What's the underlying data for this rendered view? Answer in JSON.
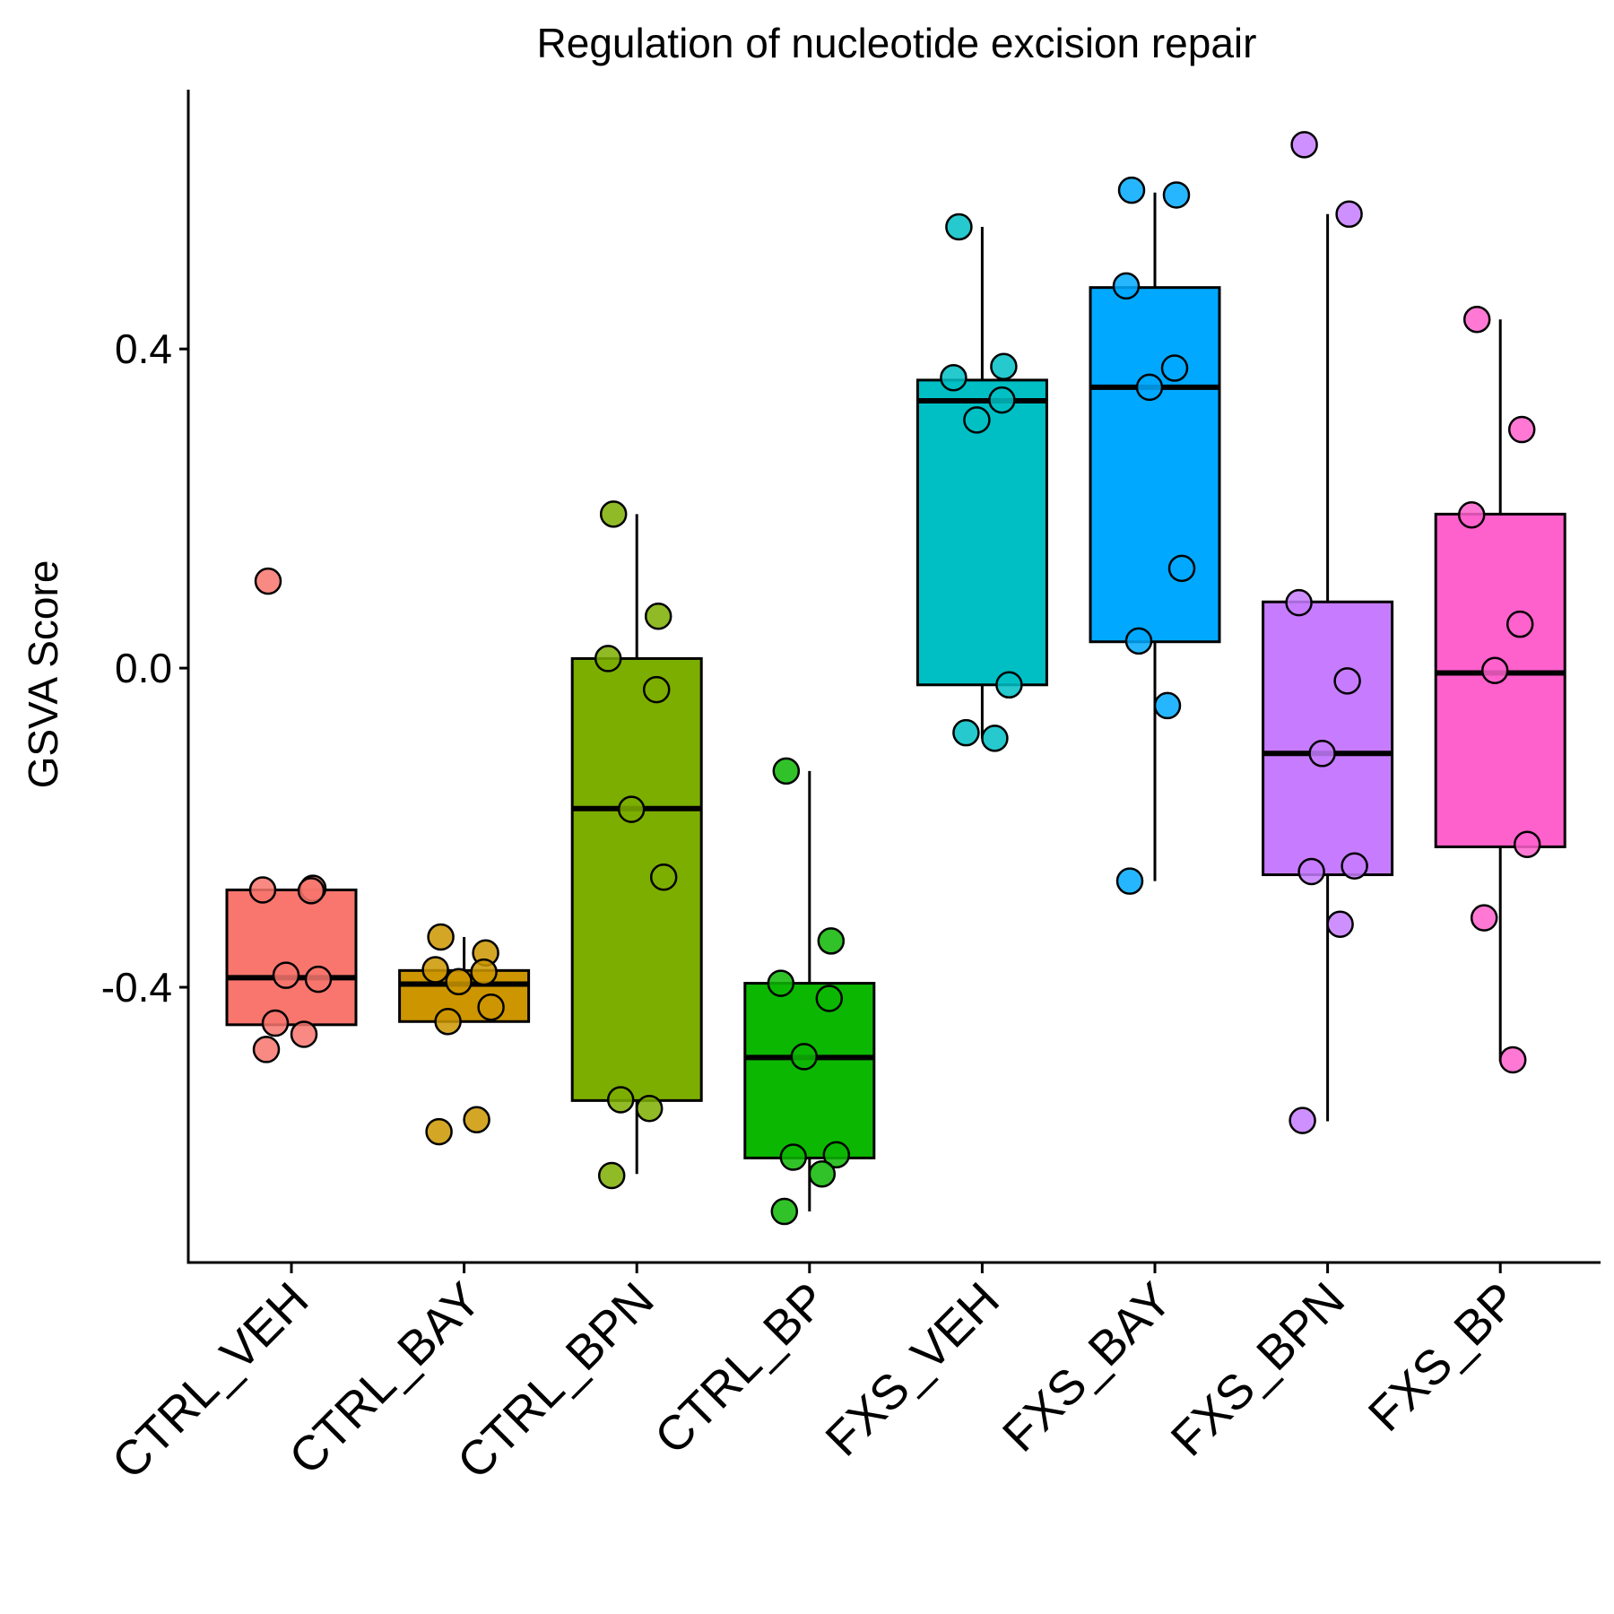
{
  "chart_data": {
    "type": "boxplot",
    "title": "Regulation of nucleotide excision repair",
    "xlabel": "",
    "ylabel": "GSVA Score",
    "ylim": [
      -0.745,
      0.725
    ],
    "yticks": [
      {
        "value": 0.4,
        "label": "0.4"
      },
      {
        "value": 0.0,
        "label": "0.0"
      },
      {
        "value": -0.4,
        "label": "-0.4"
      }
    ],
    "grid": false,
    "legend": "none",
    "groups": [
      {
        "name": "CTRL_VEH",
        "color": "#F8766D",
        "box": {
          "q1": -0.447,
          "median": -0.388,
          "q3": -0.278,
          "whisker_low": -0.447,
          "whisker_high": -0.278
        },
        "points": [
          0.109,
          -0.276,
          -0.278,
          -0.279,
          -0.385,
          -0.39,
          -0.445,
          -0.459,
          -0.478
        ]
      },
      {
        "name": "CTRL_BAY",
        "color": "#CD9600",
        "box": {
          "q1": -0.443,
          "median": -0.396,
          "q3": -0.379,
          "whisker_low": -0.443,
          "whisker_high": -0.337
        },
        "points": [
          -0.337,
          -0.357,
          -0.378,
          -0.381,
          -0.393,
          -0.425,
          -0.443,
          -0.566,
          -0.581
        ]
      },
      {
        "name": "CTRL_BPN",
        "color": "#7CAE00",
        "box": {
          "q1": -0.542,
          "median": -0.176,
          "q3": 0.012,
          "whisker_low": -0.634,
          "whisker_high": 0.193
        },
        "points": [
          0.193,
          0.065,
          0.012,
          -0.027,
          -0.177,
          -0.262,
          -0.541,
          -0.552,
          -0.636
        ]
      },
      {
        "name": "CTRL_BP",
        "color": "#0CB702",
        "box": {
          "q1": -0.614,
          "median": -0.488,
          "q3": -0.395,
          "whisker_low": -0.681,
          "whisker_high": -0.129
        },
        "points": [
          -0.129,
          -0.342,
          -0.395,
          -0.414,
          -0.487,
          -0.61,
          -0.613,
          -0.634,
          -0.681
        ]
      },
      {
        "name": "FXS_VEH",
        "color": "#00BFC4",
        "box": {
          "q1": -0.021,
          "median": 0.335,
          "q3": 0.361,
          "whisker_low": -0.088,
          "whisker_high": 0.553
        },
        "points": [
          0.553,
          0.378,
          0.364,
          0.336,
          0.311,
          -0.021,
          -0.081,
          -0.088
        ]
      },
      {
        "name": "FXS_BAY",
        "color": "#00A9FF",
        "box": {
          "q1": 0.033,
          "median": 0.352,
          "q3": 0.477,
          "whisker_low": -0.267,
          "whisker_high": 0.596
        },
        "points": [
          0.599,
          0.593,
          0.479,
          0.376,
          0.352,
          0.125,
          0.034,
          -0.047,
          -0.267
        ]
      },
      {
        "name": "FXS_BPN",
        "color": "#C77CFF",
        "box": {
          "q1": -0.259,
          "median": -0.107,
          "q3": 0.083,
          "whisker_low": -0.568,
          "whisker_high": 0.569
        },
        "points": [
          0.656,
          0.569,
          0.082,
          -0.016,
          -0.107,
          -0.248,
          -0.255,
          -0.321,
          -0.567
        ]
      },
      {
        "name": "FXS_BP",
        "color": "#FF61CC",
        "box": {
          "q1": -0.224,
          "median": -0.006,
          "q3": 0.193,
          "whisker_low": -0.493,
          "whisker_high": 0.437
        },
        "points": [
          0.437,
          0.299,
          0.192,
          0.055,
          -0.003,
          -0.221,
          -0.313,
          -0.491
        ]
      }
    ]
  }
}
